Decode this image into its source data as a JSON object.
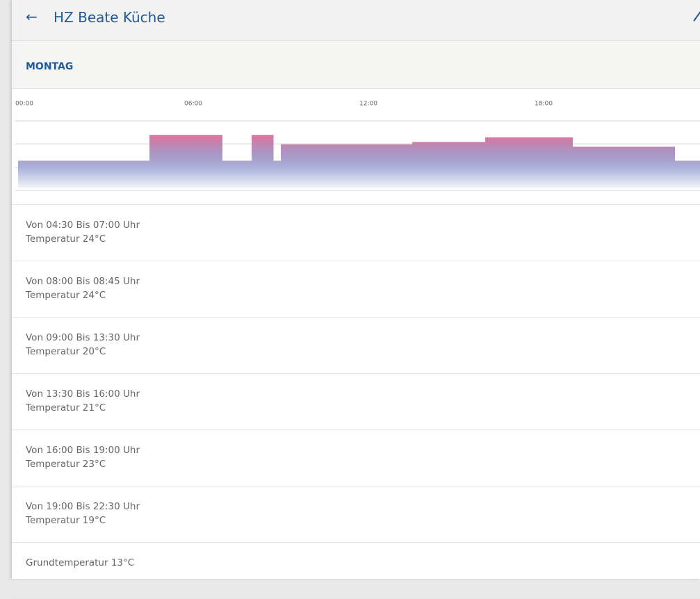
{
  "header": {
    "title": "HZ Beate Küche"
  },
  "day": "MONTAG",
  "chart": {
    "xlim": [
      0,
      24
    ],
    "ylim": [
      0,
      30
    ],
    "xticks": [
      {
        "value": 0,
        "label": "00:00"
      },
      {
        "value": 6,
        "label": "06:00"
      },
      {
        "value": 12,
        "label": "12:00"
      },
      {
        "value": 18,
        "label": "18:00"
      }
    ],
    "base": 13,
    "segments": [
      {
        "start": 4.5,
        "end": 7,
        "temp": 24
      },
      {
        "start": 8,
        "end": 8.75,
        "temp": 24
      },
      {
        "start": 9,
        "end": 13.5,
        "temp": 20
      },
      {
        "start": 13.5,
        "end": 16,
        "temp": 21
      },
      {
        "start": 16,
        "end": 19,
        "temp": 23
      },
      {
        "start": 19,
        "end": 22.5,
        "temp": 19
      }
    ]
  },
  "entries": [
    {
      "time": "Von 04:30 Bis 07:00 Uhr",
      "temp": "Temperatur 24°C"
    },
    {
      "time": "Von 08:00 Bis 08:45 Uhr",
      "temp": "Temperatur 24°C"
    },
    {
      "time": "Von 09:00 Bis 13:30 Uhr",
      "temp": "Temperatur 20°C"
    },
    {
      "time": "Von 13:30 Bis 16:00 Uhr",
      "temp": "Temperatur 21°C"
    },
    {
      "time": "Von 16:00 Bis 19:00 Uhr",
      "temp": "Temperatur 23°C"
    },
    {
      "time": "Von 19:00 Bis 22:30 Uhr",
      "temp": "Temperatur 19°C"
    }
  ],
  "base_label": "Grundtemperatur 13°C"
}
